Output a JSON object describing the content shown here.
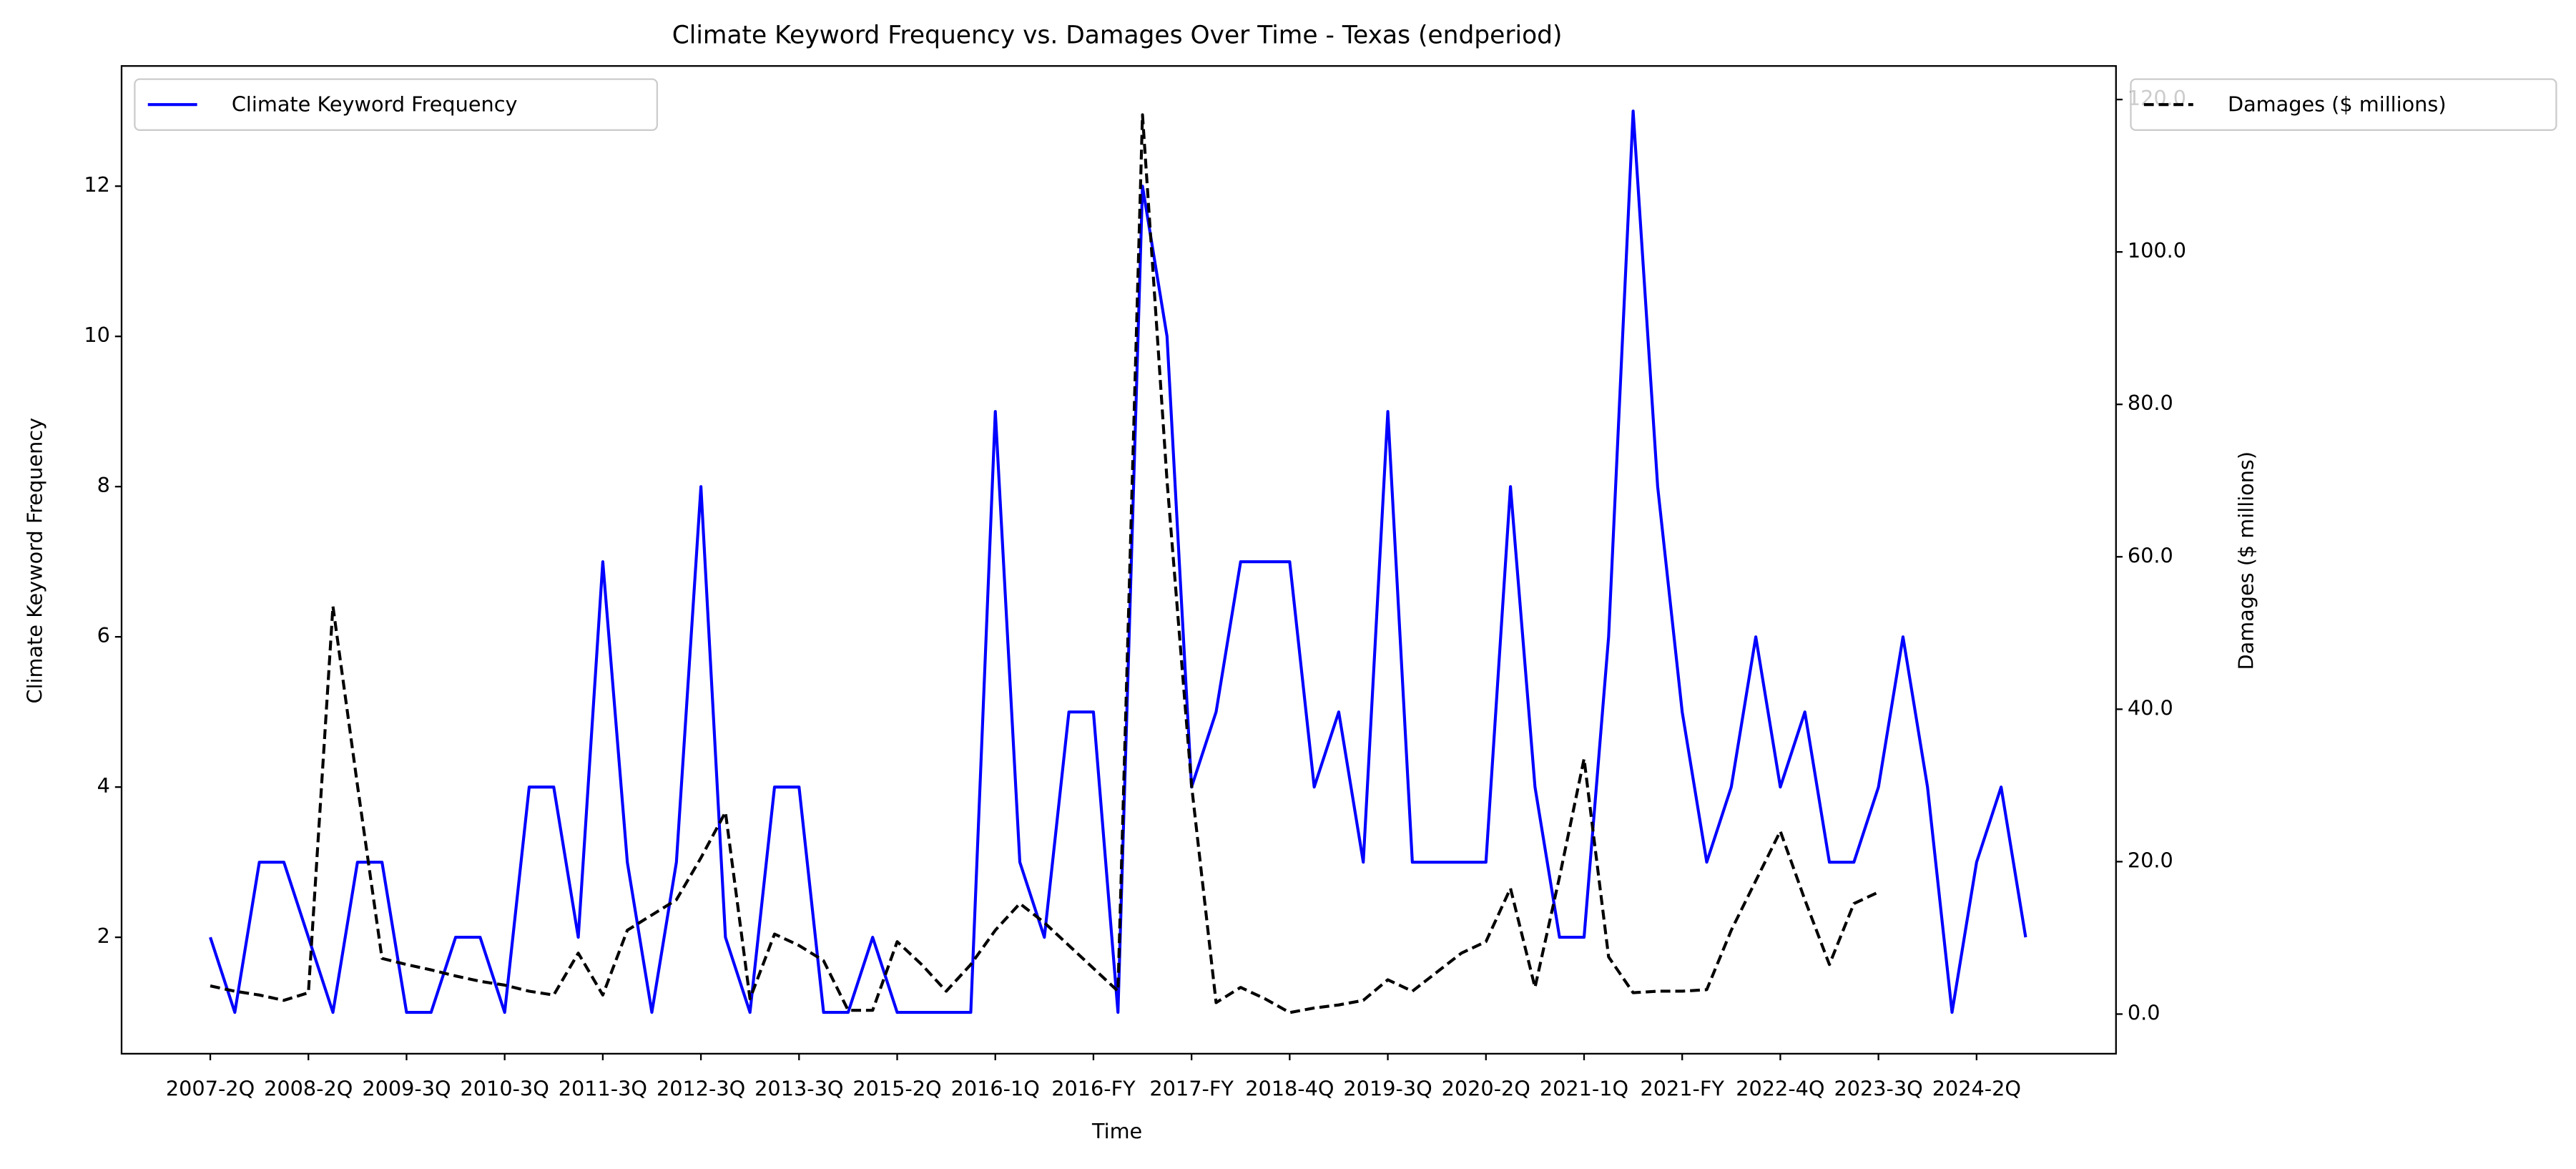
{
  "chart_data": {
    "type": "line",
    "title": "Climate Keyword Frequency vs. Damages Over Time - Texas (endperiod)",
    "x_label": "Time",
    "y_label": "Climate Keyword Frequency",
    "y2_label": "Damages ($ millions)",
    "categories": [
      "2007-2Q",
      null,
      null,
      null,
      "2008-2Q",
      null,
      null,
      null,
      "2009-3Q",
      null,
      null,
      null,
      "2010-3Q",
      null,
      null,
      null,
      "2011-3Q",
      null,
      null,
      null,
      "2012-3Q",
      null,
      null,
      null,
      "2013-3Q",
      null,
      null,
      null,
      "2015-2Q",
      null,
      null,
      null,
      "2016-1Q",
      null,
      null,
      null,
      "2016-FY",
      null,
      null,
      null,
      "2017-FY",
      null,
      null,
      null,
      "2018-4Q",
      null,
      null,
      null,
      "2019-3Q",
      null,
      null,
      null,
      "2020-2Q",
      null,
      null,
      null,
      "2021-1Q",
      null,
      null,
      null,
      "2021-FY",
      null,
      null,
      null,
      "2022-4Q",
      null,
      null,
      null,
      "2023-3Q",
      null,
      null,
      null,
      "2024-2Q",
      null,
      null
    ],
    "series": [
      {
        "name": "Climate Keyword Frequency",
        "color": "#0000ff",
        "dash": false,
        "legend": "upper left",
        "values": [
          2,
          1,
          3,
          3,
          2,
          1,
          3,
          3,
          1,
          1,
          2,
          2,
          1,
          4,
          4,
          2,
          7,
          3,
          1,
          3,
          8,
          2,
          1,
          4,
          4,
          1,
          1,
          2,
          1,
          1,
          1,
          1,
          9,
          3,
          2,
          5,
          5,
          1,
          12,
          10,
          4,
          5,
          7,
          7,
          7,
          4,
          5,
          3,
          9,
          3,
          3,
          3,
          3,
          8,
          4,
          2,
          2,
          6,
          13,
          8,
          5,
          3,
          4,
          6,
          4,
          5,
          3,
          3,
          4,
          6,
          4,
          1,
          3,
          4,
          2
        ]
      },
      {
        "name": "Damages ($ millions)",
        "color": "#000000",
        "dash": true,
        "axis": "y2",
        "legend": "upper right",
        "values": [
          3.7,
          3,
          2.5,
          1.8,
          2.8,
          53.5,
          30,
          7.3,
          6.5,
          5.8,
          5,
          4.3,
          3.8,
          3,
          2.5,
          8,
          2.5,
          11,
          13,
          15,
          20.5,
          26.5,
          2,
          10.5,
          9,
          7,
          0.5,
          0.5,
          9.5,
          6.5,
          3,
          6.5,
          11,
          14.5,
          12,
          9,
          6,
          3,
          118,
          70,
          30,
          1.5,
          3.5,
          2,
          0.2,
          0.8,
          1.2,
          1.8,
          4.5,
          3,
          5.5,
          8,
          9.5,
          16.5,
          3.5,
          18,
          33.5,
          7.5,
          2.8,
          3,
          3,
          3.2,
          11,
          17.5,
          24,
          15,
          6.5,
          14.5,
          16,
          null,
          null,
          null,
          null,
          null,
          null
        ]
      }
    ],
    "ylim": [
      0.45,
      13.6
    ],
    "yticks": [
      2,
      4,
      6,
      8,
      10,
      12
    ],
    "y2lim": [
      -5.2,
      124.4
    ],
    "y2ticks": [
      {
        "value": 0,
        "label": "0.0"
      },
      {
        "value": 20,
        "label": "20.0"
      },
      {
        "value": 40,
        "label": "40.0"
      },
      {
        "value": 60,
        "label": "60.0"
      },
      {
        "value": 80,
        "label": "80.0"
      },
      {
        "value": 100,
        "label": "100.0"
      },
      {
        "value": 120,
        "label": "120.0"
      }
    ],
    "grid": false
  }
}
